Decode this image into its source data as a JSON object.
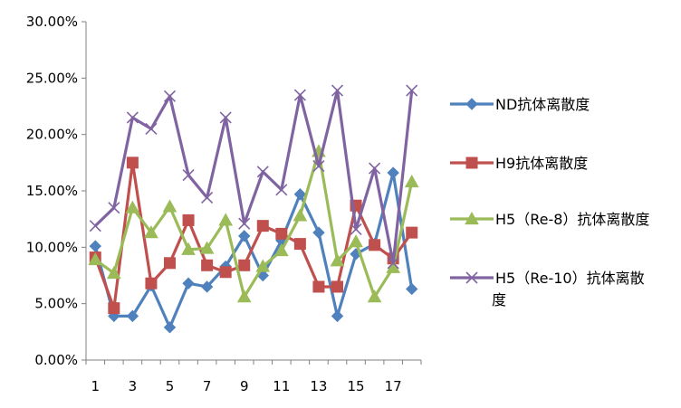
{
  "chart_data": {
    "type": "line",
    "x": [
      1,
      2,
      3,
      4,
      5,
      6,
      7,
      8,
      9,
      10,
      11,
      12,
      13,
      14,
      15,
      16,
      17,
      18
    ],
    "x_tick_labels": [
      "1",
      "3",
      "5",
      "7",
      "9",
      "11",
      "13",
      "15",
      "17"
    ],
    "ylim": [
      0,
      0.3
    ],
    "y_tick_labels": [
      "0.00%",
      "5.00%",
      "10.00%",
      "15.00%",
      "20.00%",
      "25.00%",
      "30.00%"
    ],
    "grid": false,
    "legend_position": "right",
    "series": [
      {
        "name": "ND抗体离散度",
        "color": "#4F81BD",
        "marker": "diamond",
        "values": [
          0.101,
          0.039,
          0.039,
          0.066,
          0.029,
          0.068,
          0.065,
          0.083,
          0.11,
          0.075,
          0.106,
          0.147,
          0.113,
          0.039,
          0.094,
          0.103,
          0.166,
          0.063
        ]
      },
      {
        "name": "H9抗体离散度",
        "color": "#C0504D",
        "marker": "square",
        "values": [
          0.091,
          0.046,
          0.175,
          0.068,
          0.086,
          0.124,
          0.084,
          0.078,
          0.084,
          0.119,
          0.112,
          0.103,
          0.065,
          0.065,
          0.137,
          0.102,
          0.09,
          0.113
        ]
      },
      {
        "name": "H5（Re-8）抗体离散度",
        "color": "#9BBB59",
        "marker": "triangle",
        "values": [
          0.089,
          0.077,
          0.135,
          0.113,
          0.136,
          0.098,
          0.099,
          0.124,
          0.056,
          0.083,
          0.097,
          0.128,
          0.185,
          0.088,
          0.105,
          0.056,
          0.082,
          0.158
        ]
      },
      {
        "name": "H5（Re-10）抗体离散度",
        "color": "#8064A2",
        "marker": "x",
        "values": [
          0.119,
          0.135,
          0.215,
          0.205,
          0.234,
          0.164,
          0.144,
          0.215,
          0.121,
          0.167,
          0.151,
          0.235,
          0.172,
          0.239,
          0.116,
          0.17,
          0.086,
          0.239
        ]
      }
    ]
  }
}
